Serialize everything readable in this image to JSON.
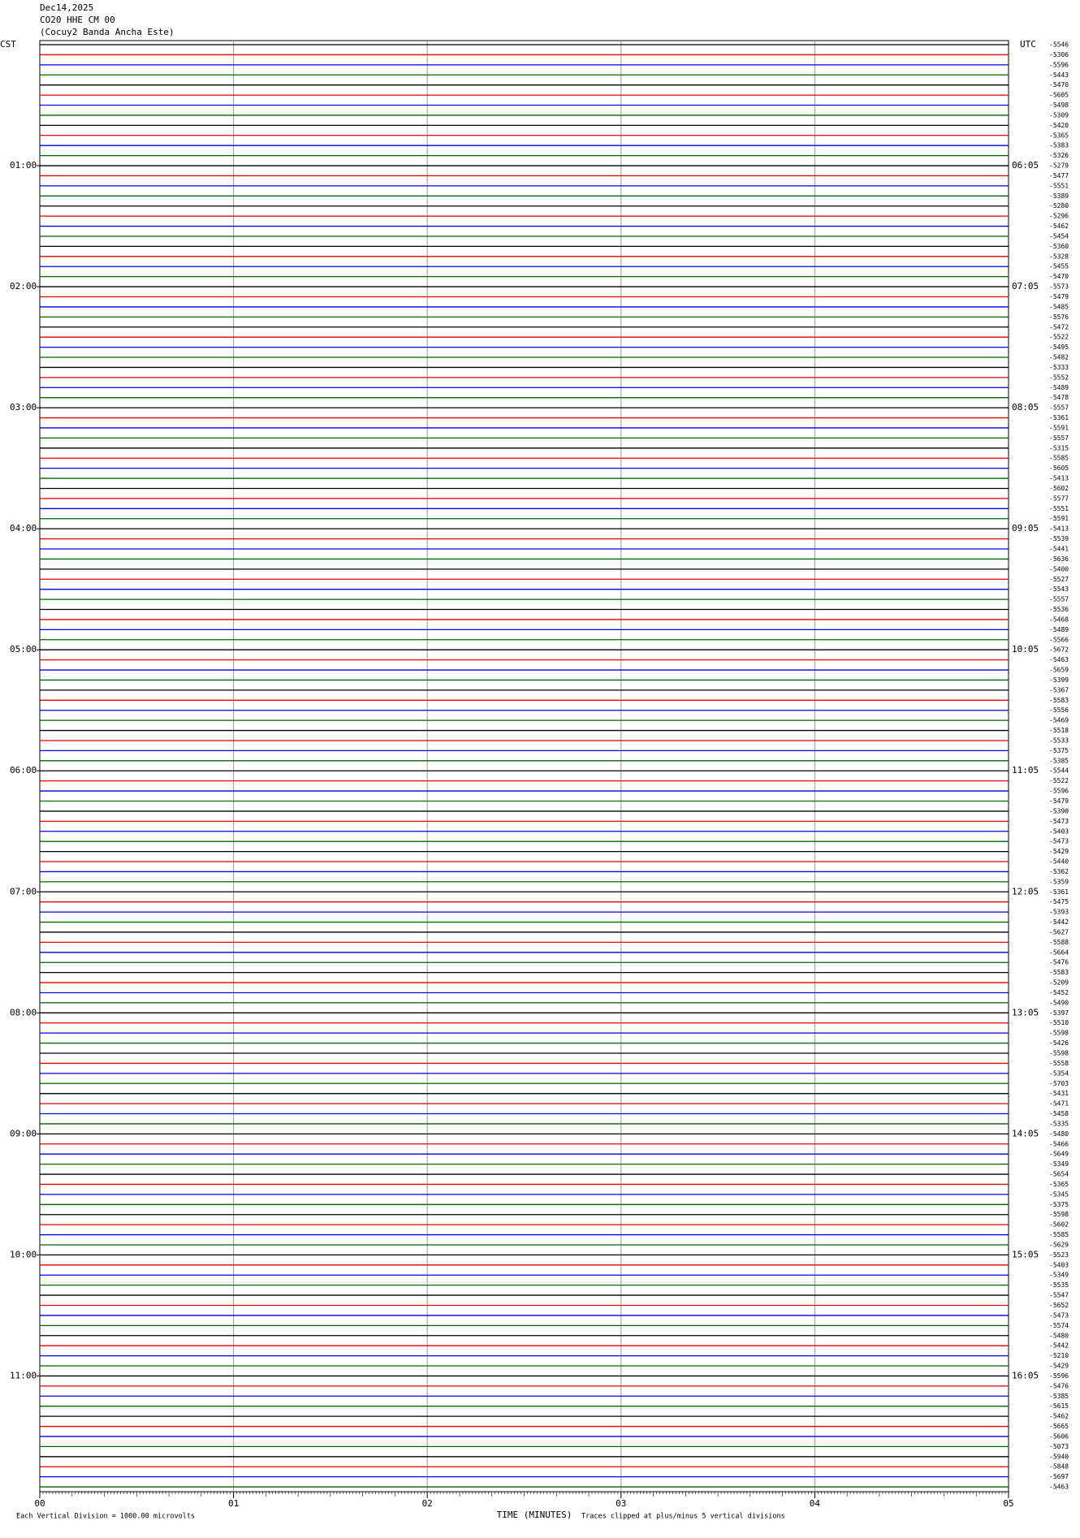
{
  "header": {
    "date": "Dec14,2025",
    "station": "CO20 HHE CM 00",
    "site": "(Cocuy2 Banda Ancha Este)"
  },
  "left_axis": {
    "title": "CST",
    "labels": [
      "01:00",
      "02:00",
      "03:00",
      "04:00",
      "05:00",
      "06:00",
      "07:00",
      "08:00",
      "09:00",
      "10:00",
      "11:00"
    ]
  },
  "right_axis": {
    "title": "UTC",
    "labels": [
      "06:05",
      "07:05",
      "08:05",
      "09:05",
      "10:05",
      "11:05",
      "12:05",
      "13:05",
      "14:05",
      "15:05",
      "16:05"
    ]
  },
  "trace_offsets": [
    -5546,
    -5306,
    -5596,
    -5443,
    -5470,
    -5605,
    -5498,
    -5309,
    -5420,
    -5365,
    -5383,
    -5326,
    -5279,
    -5477,
    -5551,
    -5389,
    -5280,
    -5296,
    -5462,
    -5454,
    -5360,
    -5328,
    -5455,
    -5470,
    -5573,
    -5479,
    -5485,
    -5576,
    -5472,
    -5522,
    -5495,
    -5482,
    -5333,
    -5552,
    -5489,
    -5478,
    -5557,
    -5361,
    -5591,
    -5557,
    -5315,
    -5585,
    -5605,
    -5413,
    -5602,
    -5577,
    -5551,
    -5591,
    -5413,
    -5539,
    -5441,
    -5636,
    -5400,
    -5527,
    -5543,
    -5557,
    -5536,
    -5468,
    -5489,
    -5566,
    -5672,
    -5463,
    -5659,
    -5399,
    -5367,
    -5583,
    -5556,
    -5469,
    -5518,
    -5533,
    -5375,
    -5385,
    -5544,
    -5522,
    -5596,
    -5479,
    -5390,
    -5473,
    -5403,
    -5473,
    -5429,
    -5440,
    -5362,
    -5359,
    -5361,
    -5475,
    -5393,
    -5442,
    -5627,
    -5588,
    -5664,
    -5476,
    -5583,
    -5209,
    -5452,
    -5490,
    -5397,
    -5510,
    -5598,
    -5426,
    -5598,
    -5558,
    -5354,
    -5703,
    -5431,
    -5471,
    -5458,
    -5335,
    -5480,
    -5466,
    -5649,
    -5349,
    -5654,
    -5365,
    -5345,
    -5375,
    -5598,
    -5602,
    -5585,
    -5629,
    -5523,
    -5403,
    -5349,
    -5535,
    -5547,
    -5652,
    -5473,
    -5574,
    -5480,
    -5442,
    -5210,
    -5429,
    -5596,
    -5476,
    -5385,
    -5615,
    -5462,
    -5665,
    -5606,
    -5073,
    -5940,
    -5848,
    -5697,
    -5463
  ],
  "trace_colors": [
    "#000000",
    "#e00000",
    "#0000e0",
    "#006400"
  ],
  "x_axis": {
    "title": "TIME (MINUTES)",
    "labels": [
      "00",
      "01",
      "02",
      "03",
      "04",
      "05"
    ]
  },
  "footer": {
    "scale": "Each Vertical Division = 1000.00 microvolts",
    "clip": "Traces clipped at plus/minus 5 vertical divisions"
  }
}
